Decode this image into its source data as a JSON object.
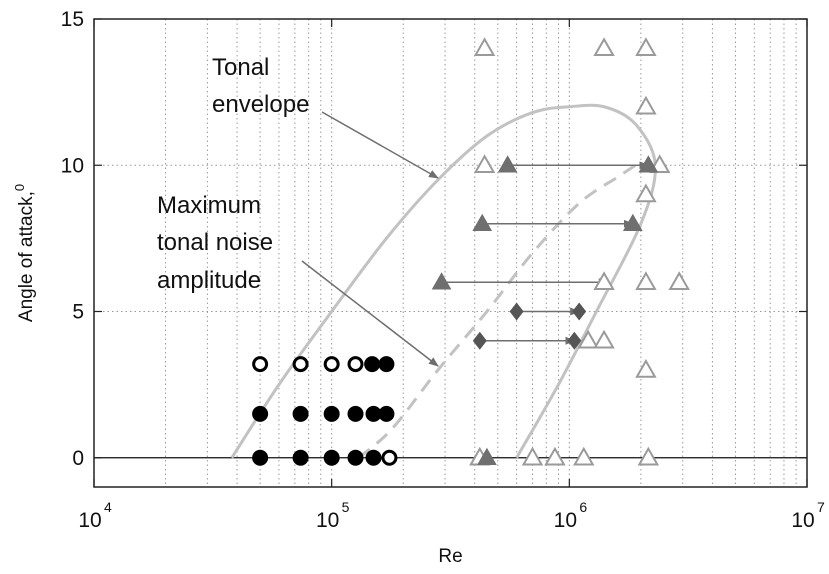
{
  "chart_data": {
    "type": "scatter",
    "title": "",
    "xlabel": "Re",
    "ylabel": "Angle of attack,",
    "ylabel_sup": "0",
    "x_scale": "log",
    "xlim": [
      10000,
      10000000
    ],
    "ylim": [
      -1,
      15
    ],
    "x_ticks": [
      {
        "value": 10000,
        "base": "10",
        "exp": "4"
      },
      {
        "value": 100000,
        "base": "10",
        "exp": "5"
      },
      {
        "value": 1000000,
        "base": "10",
        "exp": "6"
      },
      {
        "value": 10000000,
        "base": "10",
        "exp": "7"
      }
    ],
    "y_ticks": [
      {
        "value": 0,
        "label": "0"
      },
      {
        "value": 5,
        "label": "5"
      },
      {
        "value": 10,
        "label": "10"
      },
      {
        "value": 15,
        "label": "15"
      }
    ],
    "grid": true,
    "colors": {
      "triangle_filled": "#6f6f6f",
      "triangle_open": "#9a9a9a",
      "diamond": "#555555",
      "circle_filled": "#000000",
      "envelope": "#c2c2c2",
      "arrow": "#6e6e6e"
    },
    "annotations": [
      {
        "lines": [
          "Tonal",
          "envelope"
        ],
        "arrow_to": {
          "x": 290000,
          "y": 9.5
        }
      },
      {
        "lines": [
          "Maximum",
          "tonal noise",
          "amplitude"
        ],
        "arrow_to": {
          "x": 290000,
          "y": 3.1
        }
      }
    ],
    "envelopes": [
      {
        "style": "solid",
        "points": [
          [
            38000,
            0
          ],
          [
            60000,
            2.5
          ],
          [
            100000,
            5
          ],
          [
            170000,
            7.5
          ],
          [
            280000,
            9.5
          ],
          [
            450000,
            11
          ],
          [
            700000,
            11.8
          ],
          [
            1000000,
            12
          ],
          [
            1400000,
            12
          ],
          [
            1900000,
            11.4
          ],
          [
            2300000,
            10
          ],
          [
            2000000,
            8
          ],
          [
            1300000,
            5
          ],
          [
            900000,
            2.5
          ],
          [
            600000,
            0
          ]
        ]
      },
      {
        "style": "dashed",
        "points": [
          [
            130000,
            0
          ],
          [
            180000,
            1
          ],
          [
            280000,
            3
          ],
          [
            450000,
            5
          ],
          [
            700000,
            7
          ],
          [
            1100000,
            8.7
          ],
          [
            1600000,
            9.6
          ],
          [
            1900000,
            10
          ]
        ]
      }
    ],
    "series": [
      {
        "marker": "triangle-open",
        "points": [
          [
            440000,
            14
          ],
          [
            1400000,
            14
          ],
          [
            2100000,
            14
          ],
          [
            2100000,
            12
          ],
          [
            440000,
            10
          ],
          [
            2400000,
            10
          ],
          [
            2100000,
            9
          ],
          [
            1400000,
            6
          ],
          [
            2100000,
            6
          ],
          [
            2900000,
            6
          ],
          [
            1200000,
            4
          ],
          [
            1400000,
            4
          ],
          [
            2100000,
            3
          ],
          [
            420000,
            0
          ],
          [
            700000,
            0
          ],
          [
            870000,
            0
          ],
          [
            1150000,
            0
          ],
          [
            2150000,
            0
          ]
        ]
      },
      {
        "marker": "triangle-filled",
        "points": [
          [
            550000,
            10
          ],
          [
            2150000,
            10
          ],
          [
            430000,
            8
          ],
          [
            1850000,
            8
          ],
          [
            290000,
            6
          ],
          [
            450000,
            0
          ]
        ]
      },
      {
        "marker": "diamond",
        "points": [
          [
            600000,
            5
          ],
          [
            1100000,
            5
          ],
          [
            420000,
            4
          ],
          [
            1050000,
            4
          ]
        ]
      },
      {
        "marker": "circle-filled",
        "points": [
          [
            50000,
            1.5
          ],
          [
            74000,
            1.5
          ],
          [
            100000,
            1.5
          ],
          [
            126000,
            1.5
          ],
          [
            150000,
            1.5
          ],
          [
            170000,
            1.5
          ],
          [
            50000,
            0
          ],
          [
            74000,
            0
          ],
          [
            100000,
            0
          ],
          [
            126000,
            0
          ],
          [
            150000,
            0
          ],
          [
            148000,
            3.2
          ],
          [
            170000,
            3.2
          ]
        ]
      },
      {
        "marker": "circle-open",
        "points": [
          [
            50000,
            3.2
          ],
          [
            74000,
            3.2
          ],
          [
            100000,
            3.2
          ],
          [
            126000,
            3.2
          ],
          [
            175000,
            0
          ]
        ]
      }
    ],
    "range_arrows": [
      {
        "y": 10,
        "x1": 550000,
        "x2": 2150000
      },
      {
        "y": 8,
        "x1": 430000,
        "x2": 1850000
      },
      {
        "y": 6,
        "x1": 290000,
        "x2": 1450000
      },
      {
        "y": 5,
        "x1": 600000,
        "x2": 1100000
      },
      {
        "y": 4,
        "x1": 420000,
        "x2": 1050000
      }
    ]
  }
}
